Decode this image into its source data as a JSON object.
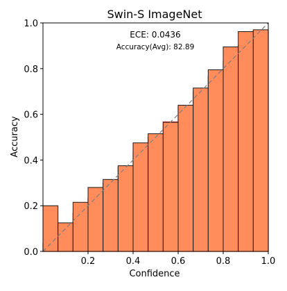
{
  "chart_data": {
    "type": "bar",
    "title": "Swin-S  ImageNet",
    "xlabel": "Confidence",
    "ylabel": "Accuracy",
    "xlim": [
      0,
      1
    ],
    "ylim": [
      0,
      1
    ],
    "xticks": [
      "0.2",
      "0.4",
      "0.6",
      "0.8",
      "1.0"
    ],
    "yticks": [
      "0.0",
      "0.2",
      "0.4",
      "0.6",
      "0.8",
      "1.0"
    ],
    "annotations": {
      "ece": "ECE: 0.0436",
      "accuracy": "Accuracy(Avg): 82.89"
    },
    "bins": 15,
    "accuracy": [
      0.2,
      0.125,
      0.215,
      0.28,
      0.315,
      0.375,
      0.475,
      0.515,
      0.565,
      0.64,
      0.715,
      0.795,
      0.895,
      0.962,
      0.97
    ],
    "confidence": [
      0.0333,
      0.1,
      0.1667,
      0.2333,
      0.3,
      0.3667,
      0.4333,
      0.5,
      0.5667,
      0.6333,
      0.7,
      0.7667,
      0.8333,
      0.9,
      0.9667
    ],
    "colors": {
      "accuracy_bar": "#ff8c5a",
      "gap_fill": "#ffc832",
      "gap_edge": "#e0332a",
      "bar_edge": "#1a1a1a",
      "diagonal": "#808080"
    }
  }
}
